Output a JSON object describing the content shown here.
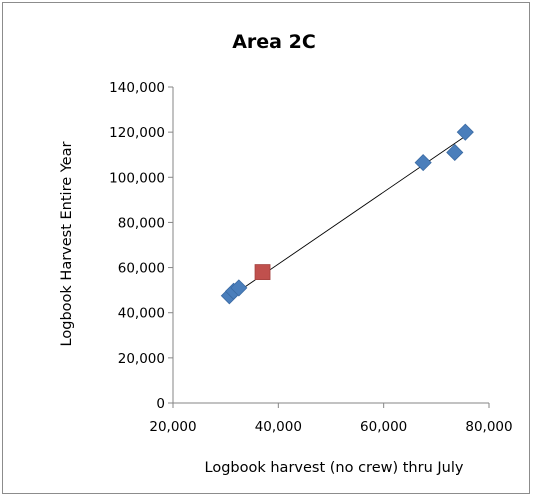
{
  "chart_data": {
    "type": "scatter",
    "title": "Area 2C",
    "xlabel": "Logbook harvest (no crew) thru July",
    "ylabel": "Logbook Harvest Entire Year",
    "xlim": [
      20000,
      80000
    ],
    "ylim": [
      0,
      140000
    ],
    "x_ticks": [
      20000,
      40000,
      60000,
      80000
    ],
    "x_tick_labels": [
      "20,000",
      "40,000",
      "60,000",
      "80,000"
    ],
    "y_ticks": [
      0,
      20000,
      40000,
      60000,
      80000,
      100000,
      120000,
      140000
    ],
    "y_tick_labels": [
      "0",
      "20,000",
      "40,000",
      "60,000",
      "80,000",
      "100,000",
      "120,000",
      "140,000"
    ],
    "grid": false,
    "legend": "none",
    "series": [
      {
        "marker": "diamond",
        "color": "#4a7ebb",
        "points": [
          {
            "x": 30700,
            "y": 47500
          },
          {
            "x": 31500,
            "y": 49500
          },
          {
            "x": 32500,
            "y": 51000
          },
          {
            "x": 67500,
            "y": 106500
          },
          {
            "x": 73500,
            "y": 111000
          },
          {
            "x": 75500,
            "y": 120000
          }
        ]
      },
      {
        "marker": "square",
        "color": "#c0504d",
        "points": [
          {
            "x": 37000,
            "y": 58000
          }
        ]
      }
    ],
    "trendline": {
      "type": "linear",
      "color": "#000000",
      "from": {
        "x": 31200,
        "y": 47500
      },
      "to": {
        "x": 75700,
        "y": 118500
      }
    }
  }
}
